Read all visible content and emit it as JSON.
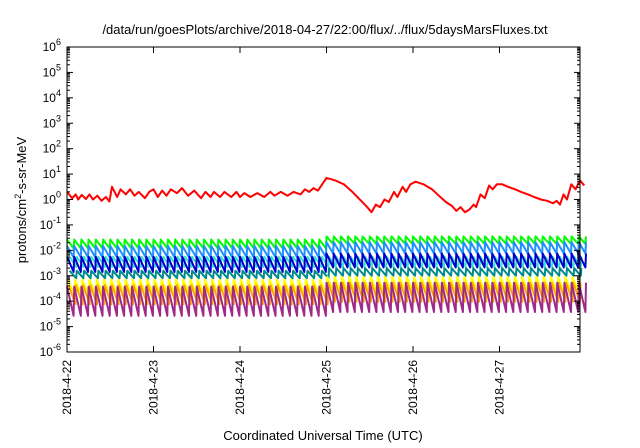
{
  "chart_data": {
    "type": "line",
    "title": "/data/run/goesPlots/archive/2018-04-27/22:00/flux/../flux/5daysMarsFluxes.txt",
    "xlabel": "Coordinated Universal Time (UTC)",
    "ylabel": {
      "main": "protons/cm",
      "sup": "2",
      "rest": "-s-sr-MeV"
    },
    "y_scale": "log",
    "ylim_exponents": [
      -6,
      6
    ],
    "y_ticks": [
      {
        "mantissa": "10",
        "exp": "-6",
        "value": -6
      },
      {
        "mantissa": "10",
        "exp": "-5",
        "value": -5
      },
      {
        "mantissa": "10",
        "exp": "-4",
        "value": -4
      },
      {
        "mantissa": "10",
        "exp": "-3",
        "value": -3
      },
      {
        "mantissa": "10",
        "exp": "-2",
        "value": -2
      },
      {
        "mantissa": "10",
        "exp": "-1",
        "value": -1
      },
      {
        "mantissa": "10",
        "exp": "0",
        "value": 0
      },
      {
        "mantissa": "10",
        "exp": "1",
        "value": 1
      },
      {
        "mantissa": "10",
        "exp": "2",
        "value": 2
      },
      {
        "mantissa": "10",
        "exp": "3",
        "value": 3
      },
      {
        "mantissa": "10",
        "exp": "4",
        "value": 4
      },
      {
        "mantissa": "10",
        "exp": "5",
        "value": 5
      },
      {
        "mantissa": "10",
        "exp": "6",
        "value": 6
      }
    ],
    "x_range_days": [
      0,
      6.0
    ],
    "x_ticks": [
      {
        "label": "2018-4-22",
        "day": 0
      },
      {
        "label": "2018-4-23",
        "day": 1
      },
      {
        "label": "2018-4-24",
        "day": 2
      },
      {
        "label": "2018-4-25",
        "day": 3
      },
      {
        "label": "2018-4-26",
        "day": 4
      },
      {
        "label": "2018-4-27",
        "day": 5
      }
    ],
    "grid": false,
    "series": [
      {
        "color": "#ff0000",
        "points": [
          [
            0.0,
            0.3
          ],
          [
            0.06,
            0.05
          ],
          [
            0.1,
            0.2
          ],
          [
            0.13,
            0.0
          ],
          [
            0.17,
            0.18
          ],
          [
            0.22,
            0.02
          ],
          [
            0.26,
            0.2
          ],
          [
            0.3,
            0.0
          ],
          [
            0.35,
            0.15
          ],
          [
            0.4,
            -0.05
          ],
          [
            0.45,
            0.1
          ],
          [
            0.49,
            -0.08
          ],
          [
            0.52,
            0.5
          ],
          [
            0.58,
            0.1
          ],
          [
            0.62,
            0.4
          ],
          [
            0.68,
            0.2
          ],
          [
            0.73,
            0.4
          ],
          [
            0.78,
            0.15
          ],
          [
            0.83,
            0.3
          ],
          [
            0.9,
            0.05
          ],
          [
            0.95,
            0.3
          ],
          [
            1.0,
            0.4
          ],
          [
            1.05,
            0.1
          ],
          [
            1.1,
            0.35
          ],
          [
            1.15,
            0.15
          ],
          [
            1.2,
            0.4
          ],
          [
            1.27,
            0.25
          ],
          [
            1.33,
            0.45
          ],
          [
            1.4,
            0.15
          ],
          [
            1.47,
            0.35
          ],
          [
            1.55,
            0.05
          ],
          [
            1.6,
            0.3
          ],
          [
            1.66,
            0.1
          ],
          [
            1.7,
            0.3
          ],
          [
            1.77,
            0.1
          ],
          [
            1.82,
            0.3
          ],
          [
            1.9,
            0.1
          ],
          [
            1.96,
            0.3
          ],
          [
            2.0,
            0.1
          ],
          [
            2.05,
            0.25
          ],
          [
            2.12,
            0.1
          ],
          [
            2.2,
            0.25
          ],
          [
            2.28,
            0.1
          ],
          [
            2.35,
            0.3
          ],
          [
            2.4,
            0.15
          ],
          [
            2.47,
            0.3
          ],
          [
            2.55,
            0.15
          ],
          [
            2.62,
            0.3
          ],
          [
            2.7,
            0.2
          ],
          [
            2.75,
            0.4
          ],
          [
            2.8,
            0.3
          ],
          [
            2.85,
            0.45
          ],
          [
            2.9,
            0.35
          ],
          [
            2.95,
            0.6
          ],
          [
            3.0,
            0.85
          ],
          [
            3.1,
            0.75
          ],
          [
            3.2,
            0.6
          ],
          [
            3.3,
            0.3
          ],
          [
            3.4,
            -0.05
          ],
          [
            3.47,
            -0.3
          ],
          [
            3.52,
            -0.5
          ],
          [
            3.57,
            -0.2
          ],
          [
            3.62,
            -0.3
          ],
          [
            3.67,
            0.0
          ],
          [
            3.72,
            -0.1
          ],
          [
            3.78,
            0.3
          ],
          [
            3.82,
            0.1
          ],
          [
            3.88,
            0.5
          ],
          [
            3.92,
            0.3
          ],
          [
            3.97,
            0.6
          ],
          [
            4.03,
            0.7
          ],
          [
            4.12,
            0.6
          ],
          [
            4.22,
            0.4
          ],
          [
            4.3,
            0.15
          ],
          [
            4.38,
            -0.1
          ],
          [
            4.45,
            -0.25
          ],
          [
            4.5,
            -0.45
          ],
          [
            4.55,
            -0.3
          ],
          [
            4.6,
            -0.5
          ],
          [
            4.65,
            -0.4
          ],
          [
            4.7,
            -0.2
          ],
          [
            4.73,
            -0.3
          ],
          [
            4.78,
            0.2
          ],
          [
            4.83,
            0.05
          ],
          [
            4.88,
            0.55
          ],
          [
            4.92,
            0.4
          ],
          [
            4.97,
            0.6
          ],
          [
            5.03,
            0.6
          ],
          [
            5.1,
            0.5
          ],
          [
            5.18,
            0.4
          ],
          [
            5.25,
            0.3
          ],
          [
            5.33,
            0.2
          ],
          [
            5.4,
            0.1
          ],
          [
            5.48,
            0.0
          ],
          [
            5.55,
            -0.05
          ],
          [
            5.62,
            -0.15
          ],
          [
            5.66,
            -0.05
          ],
          [
            5.7,
            -0.2
          ],
          [
            5.74,
            0.2
          ],
          [
            5.78,
            0.0
          ],
          [
            5.83,
            0.6
          ],
          [
            5.88,
            0.4
          ],
          [
            5.93,
            0.75
          ],
          [
            5.98,
            0.55
          ]
        ]
      },
      {
        "color": "#00ff00",
        "base": -1.75,
        "amp": 0.35,
        "base2": -1.6,
        "amp2": 0.3,
        "phase": 0.0
      },
      {
        "color": "#1e90ff",
        "base": -2.05,
        "amp": 0.45,
        "base2": -1.9,
        "amp2": 0.45,
        "phase": 0.0
      },
      {
        "color": "#40e0d0",
        "base": -2.45,
        "amp": 0.4,
        "base2": -2.45,
        "amp2": 0.4,
        "phase": 0.03
      },
      {
        "color": "#0000cd",
        "base": -2.55,
        "amp": 0.6,
        "base2": -2.4,
        "amp2": 0.55,
        "phase": 0.0
      },
      {
        "color": "#008b8b",
        "base": -2.95,
        "amp": 0.3,
        "base2": -2.85,
        "amp2": 0.3,
        "phase": 0.03
      },
      {
        "color": "#ffff00",
        "base": -3.45,
        "amp": 0.6,
        "base2": -3.35,
        "amp2": 0.6,
        "phase": 0.01
      },
      {
        "color": "#ffa500",
        "base": -3.75,
        "amp": 0.75,
        "base2": -3.65,
        "amp2": 0.75,
        "phase": 0.02
      },
      {
        "color": "#a0298a",
        "base": -4.0,
        "amp": 1.15,
        "base2": -3.85,
        "amp2": 1.15,
        "phase": 0.0
      }
    ]
  }
}
